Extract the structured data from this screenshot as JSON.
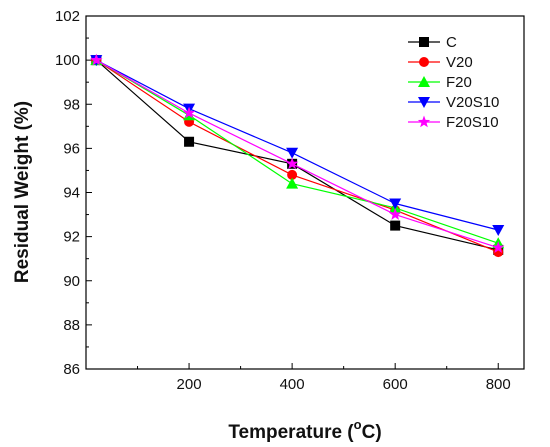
{
  "chart_data": {
    "type": "line",
    "xlabel": "Temperature (",
    "xlabel_sup": "o",
    "xlabel_suffix": "C)",
    "ylabel": "Residual Weight (%)",
    "xlim": [
      0,
      850
    ],
    "ylim": [
      86,
      102
    ],
    "x_ticks": [
      200,
      400,
      600,
      800
    ],
    "y_ticks": [
      86,
      88,
      90,
      92,
      94,
      96,
      98,
      100,
      102
    ],
    "grid": false,
    "legend_position": "top-right",
    "x": [
      20,
      200,
      400,
      600,
      800
    ],
    "series": [
      {
        "name": "C",
        "color": "#000000",
        "marker": "square",
        "values": [
          100,
          96.3,
          95.3,
          92.5,
          91.4
        ]
      },
      {
        "name": "V20",
        "color": "#ff0000",
        "marker": "circle",
        "values": [
          100,
          97.2,
          94.8,
          93.2,
          91.3
        ]
      },
      {
        "name": "F20",
        "color": "#00ff00",
        "marker": "triangle-up",
        "values": [
          100,
          97.5,
          94.4,
          93.3,
          91.7
        ]
      },
      {
        "name": "V20S10",
        "color": "#0000ff",
        "marker": "triangle-down",
        "values": [
          100,
          97.8,
          95.8,
          93.5,
          92.3
        ]
      },
      {
        "name": "F20S10",
        "color": "#ff00ff",
        "marker": "star",
        "values": [
          100,
          97.6,
          95.3,
          93.0,
          91.5
        ]
      }
    ]
  }
}
